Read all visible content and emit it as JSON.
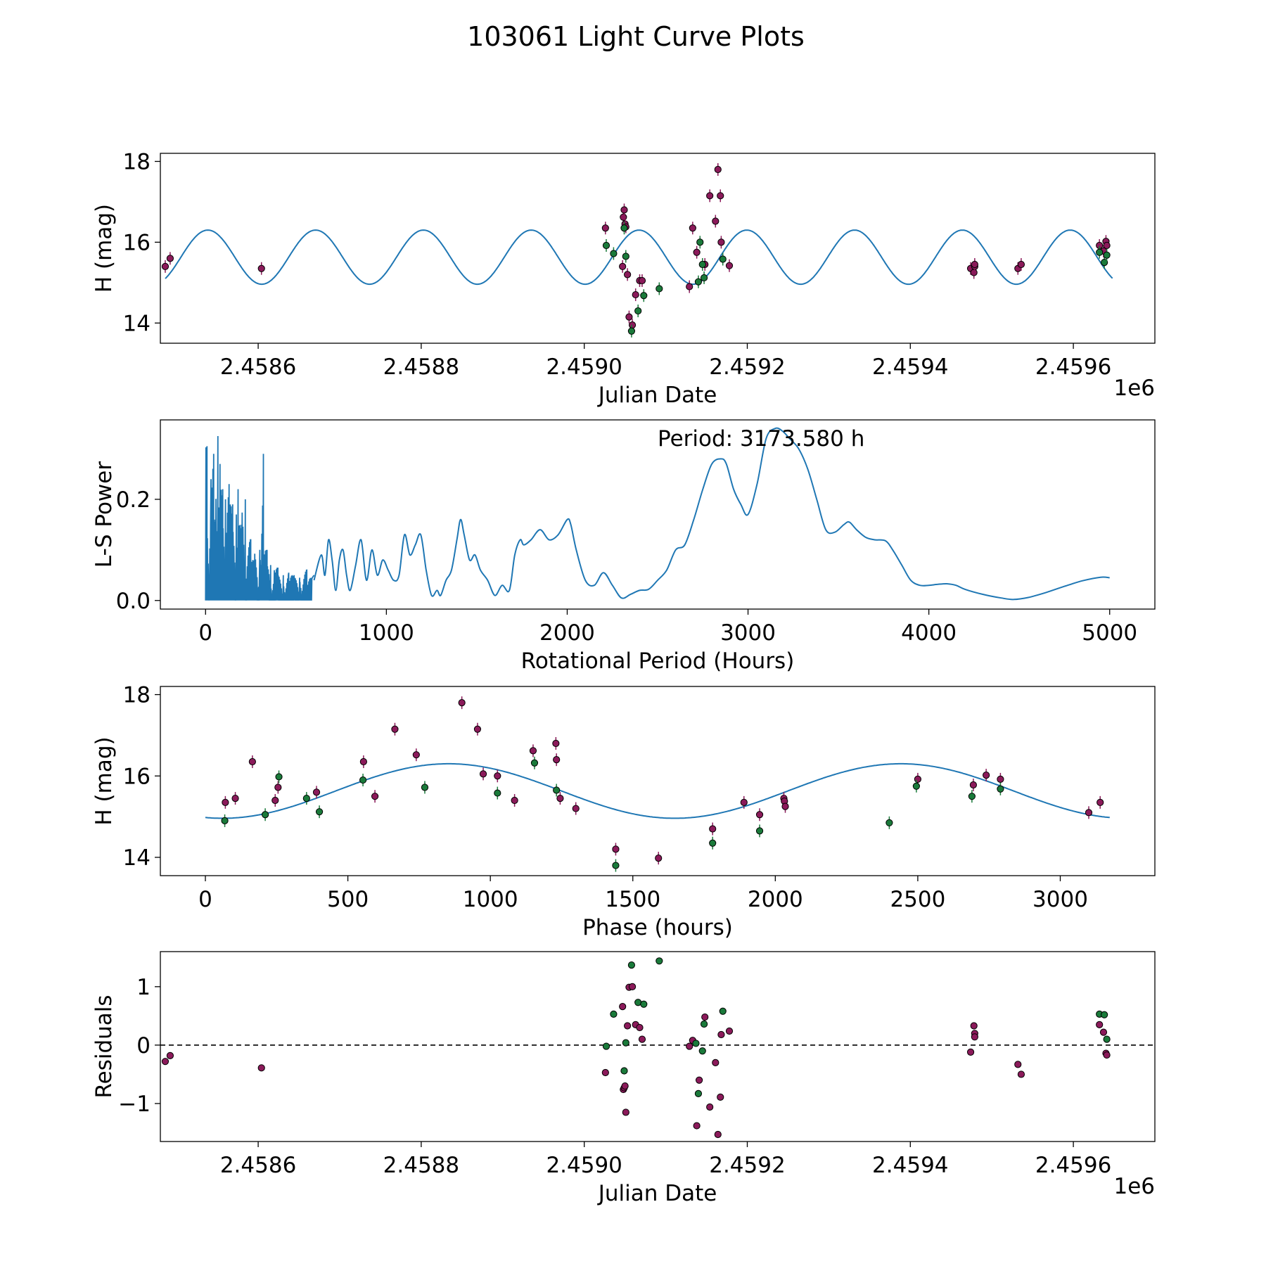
{
  "title": "103061 Light Curve Plots",
  "colors": {
    "model_line": "#1f77b4",
    "point_a": "#8b1a5a",
    "point_b": "#1a7a3a",
    "edge": "#000000",
    "errorbar_a": "#8b1a5a",
    "errorbar_b": "#1a7a3a"
  },
  "chart_data": [
    {
      "id": "lightcurve",
      "type": "scatter",
      "xlabel": "Julian Date",
      "ylabel": "H (mag)",
      "x_offset_label": "1e6",
      "xlim": [
        2.45848,
        2.4597
      ],
      "ylim": [
        13.5,
        18.2
      ],
      "xticks": [
        2.4586,
        2.4588,
        2.459,
        2.4592,
        2.4594,
        2.4596
      ],
      "xtick_labels": [
        "2.4586",
        "2.4588",
        "2.4590",
        "2.4592",
        "2.4594",
        "2.4596"
      ],
      "yticks": [
        14,
        16,
        18
      ],
      "ytick_labels": [
        "14",
        "16",
        "18"
      ],
      "model": {
        "type": "sine",
        "mean": 15.63,
        "amplitude": 0.67,
        "period_days": 132.23,
        "x_start": 2458486,
        "x_end": 2459648,
        "phase_ref": 2458486,
        "start_value": 15.1
      },
      "series": [
        {
          "name": "band-a",
          "color_key": "point_a",
          "x": [
            2458486,
            2458492,
            2458604,
            2459026,
            2459047,
            2459048,
            2459049,
            2459050,
            2459051,
            2459053,
            2459055,
            2459059,
            2459063,
            2459068,
            2459071,
            2459129,
            2459133,
            2459138,
            2459148,
            2459154,
            2459161,
            2459164,
            2459167,
            2459168,
            2459178,
            2459474,
            2459478,
            2459479,
            2459479,
            2459532,
            2459536,
            2459632,
            2459637,
            2459640,
            2459641
          ],
          "y": [
            15.4,
            15.6,
            15.35,
            16.35,
            15.4,
            16.62,
            16.8,
            16.45,
            16.38,
            15.2,
            14.15,
            13.95,
            14.7,
            15.05,
            15.05,
            14.9,
            16.35,
            15.75,
            15.45,
            17.15,
            16.52,
            17.8,
            17.15,
            16.0,
            15.42,
            15.35,
            15.25,
            15.4,
            15.45,
            15.35,
            15.45,
            15.92,
            15.78,
            16.02,
            15.92
          ]
        },
        {
          "name": "band-b",
          "color_key": "point_b",
          "x": [
            2459027,
            2459036,
            2459049,
            2459051,
            2459058,
            2459066,
            2459073,
            2459092,
            2459140,
            2459142,
            2459145,
            2459147,
            2459170,
            2459632,
            2459638,
            2459641
          ],
          "y": [
            15.92,
            15.72,
            16.35,
            15.65,
            13.8,
            14.3,
            14.68,
            14.85,
            15.02,
            16.0,
            15.45,
            15.12,
            15.58,
            15.75,
            15.5,
            15.68
          ]
        }
      ]
    },
    {
      "id": "periodogram",
      "type": "line",
      "xlabel": "Rotational Period (Hours)",
      "ylabel": "L-S Power",
      "annotation": "Period: 3173.580 h",
      "xlim": [
        -250,
        5250
      ],
      "ylim": [
        -0.017,
        0.357
      ],
      "xticks": [
        0,
        1000,
        2000,
        3000,
        4000,
        5000
      ],
      "xtick_labels": [
        "0",
        "1000",
        "2000",
        "3000",
        "4000",
        "5000"
      ],
      "yticks": [
        0.0,
        0.2
      ],
      "ytick_labels": [
        "0.0",
        "0.2"
      ],
      "series": [
        {
          "name": "power",
          "color_key": "model_line",
          "x": [
            600,
            640,
            660,
            680,
            700,
            720,
            740,
            760,
            780,
            800,
            830,
            860,
            890,
            920,
            950,
            980,
            1010,
            1040,
            1070,
            1100,
            1130,
            1160,
            1190,
            1220,
            1250,
            1280,
            1300,
            1330,
            1360,
            1390,
            1410,
            1430,
            1460,
            1490,
            1520,
            1560,
            1600,
            1640,
            1680,
            1710,
            1740,
            1760,
            1800,
            1850,
            1900,
            1950,
            2000,
            2020,
            2050,
            2100,
            2150,
            2200,
            2250,
            2300,
            2350,
            2400,
            2450,
            2500,
            2550,
            2600,
            2650,
            2700,
            2750,
            2800,
            2850,
            2880,
            2920,
            2960,
            3000,
            3050,
            3100,
            3150,
            3190,
            3230,
            3280,
            3330,
            3380,
            3430,
            3480,
            3530,
            3560,
            3600,
            3650,
            3700,
            3760,
            3800,
            3850,
            3900,
            3950,
            4000,
            4050,
            4100,
            4150,
            4200,
            4300,
            4400,
            4470,
            4550,
            4650,
            4750,
            4850,
            4950,
            5000
          ],
          "y": [
            0.04,
            0.09,
            0.05,
            0.12,
            0.08,
            0.02,
            0.08,
            0.1,
            0.05,
            0.02,
            0.07,
            0.12,
            0.04,
            0.1,
            0.05,
            0.08,
            0.06,
            0.04,
            0.05,
            0.13,
            0.09,
            0.11,
            0.13,
            0.06,
            0.01,
            0.02,
            0.01,
            0.04,
            0.06,
            0.12,
            0.16,
            0.13,
            0.08,
            0.09,
            0.06,
            0.04,
            0.01,
            0.03,
            0.02,
            0.09,
            0.12,
            0.11,
            0.12,
            0.14,
            0.12,
            0.13,
            0.16,
            0.15,
            0.1,
            0.04,
            0.03,
            0.055,
            0.03,
            0.005,
            0.012,
            0.02,
            0.022,
            0.04,
            0.06,
            0.1,
            0.11,
            0.16,
            0.22,
            0.27,
            0.28,
            0.27,
            0.22,
            0.19,
            0.17,
            0.23,
            0.32,
            0.34,
            0.335,
            0.32,
            0.3,
            0.26,
            0.2,
            0.14,
            0.135,
            0.15,
            0.155,
            0.14,
            0.125,
            0.12,
            0.118,
            0.1,
            0.07,
            0.04,
            0.03,
            0.03,
            0.032,
            0.033,
            0.03,
            0.022,
            0.012,
            0.005,
            0.002,
            0.006,
            0.016,
            0.028,
            0.039,
            0.046,
            0.045
          ]
        },
        {
          "name": "power-dense",
          "color_key": "model_line",
          "x_range": [
            0,
            600
          ],
          "peaks": [
            [
              8,
              0.305
            ],
            [
              30,
              0.24
            ],
            [
              45,
              0.29
            ],
            [
              55,
              0.16
            ],
            [
              68,
              0.325
            ],
            [
              80,
              0.27
            ],
            [
              95,
              0.22
            ],
            [
              110,
              0.2
            ],
            [
              130,
              0.23
            ],
            [
              150,
              0.19
            ],
            [
              170,
              0.17
            ],
            [
              180,
              0.22
            ],
            [
              200,
              0.15
            ],
            [
              220,
              0.2
            ],
            [
              250,
              0.12
            ],
            [
              270,
              0.08
            ],
            [
              300,
              0.1
            ],
            [
              320,
              0.29
            ],
            [
              340,
              0.1
            ],
            [
              360,
              0.07
            ],
            [
              380,
              0.06
            ],
            [
              400,
              0.065
            ],
            [
              430,
              0.05
            ],
            [
              460,
              0.055
            ],
            [
              490,
              0.05
            ],
            [
              520,
              0.045
            ],
            [
              560,
              0.06
            ],
            [
              590,
              0.045
            ]
          ]
        }
      ]
    },
    {
      "id": "phased",
      "type": "scatter",
      "xlabel": "Phase (hours)",
      "ylabel": "H (mag)",
      "xlim": [
        -158,
        3332
      ],
      "ylim": [
        13.55,
        18.2
      ],
      "xticks": [
        0,
        500,
        1000,
        1500,
        2000,
        2500,
        3000
      ],
      "xtick_labels": [
        "0",
        "500",
        "1000",
        "1500",
        "2000",
        "2500",
        "3000"
      ],
      "yticks": [
        14,
        16,
        18
      ],
      "ytick_labels": [
        "14",
        "16",
        "18"
      ],
      "model": {
        "type": "sine",
        "mean": 15.63,
        "amplitude": 0.67,
        "period": 1586.79,
        "x_start": 0,
        "x_end": 3173.58,
        "phase_ref": 0,
        "start_value": 14.96
      },
      "series": [
        {
          "name": "band-a",
          "color_key": "point_a",
          "x": [
            70,
            105,
            165,
            245,
            255,
            390,
            555,
            595,
            665,
            740,
            900,
            955,
            975,
            1025,
            1085,
            1150,
            1230,
            1232,
            1245,
            1300,
            1440,
            1590,
            1780,
            1890,
            1945,
            2030,
            2032,
            2035,
            2500,
            2695,
            2740,
            2790,
            3100,
            3140
          ],
          "y": [
            15.35,
            15.45,
            16.35,
            15.4,
            15.72,
            15.6,
            16.35,
            15.5,
            17.15,
            16.52,
            17.8,
            17.15,
            16.05,
            16.0,
            15.4,
            16.62,
            16.8,
            16.4,
            15.45,
            15.2,
            14.2,
            13.98,
            14.7,
            15.35,
            15.05,
            15.45,
            15.38,
            15.25,
            15.92,
            15.78,
            16.02,
            15.92,
            15.1,
            15.35
          ]
        },
        {
          "name": "band-b",
          "color_key": "point_b",
          "x": [
            68,
            210,
            258,
            355,
            400,
            553,
            770,
            1025,
            1155,
            1232,
            1440,
            1780,
            1945,
            2400,
            2495,
            2690,
            2790
          ],
          "y": [
            14.9,
            15.05,
            15.98,
            15.45,
            15.12,
            15.9,
            15.72,
            15.58,
            16.32,
            15.65,
            13.8,
            14.35,
            14.65,
            14.85,
            15.75,
            15.5,
            15.68
          ]
        }
      ]
    },
    {
      "id": "residuals",
      "type": "scatter",
      "xlabel": "Julian Date",
      "ylabel": "Residuals",
      "x_offset_label": "1e6",
      "xlim": [
        2.45848,
        2.4597
      ],
      "ylim": [
        -1.65,
        1.6
      ],
      "xticks": [
        2.4586,
        2.4588,
        2.459,
        2.4592,
        2.4594,
        2.4596
      ],
      "xtick_labels": [
        "2.4586",
        "2.4588",
        "2.4590",
        "2.4592",
        "2.4594",
        "2.4596"
      ],
      "yticks": [
        -1,
        0,
        1
      ],
      "ytick_labels": [
        "−1",
        "0",
        "1"
      ],
      "reference_line": 0,
      "series": [
        {
          "name": "band-a",
          "color_key": "point_a",
          "x": [
            2458486,
            2458492,
            2458604,
            2459026,
            2459047,
            2459048,
            2459049,
            2459050,
            2459051,
            2459053,
            2459055,
            2459059,
            2459063,
            2459068,
            2459071,
            2459129,
            2459133,
            2459138,
            2459141,
            2459148,
            2459154,
            2459161,
            2459164,
            2459167,
            2459168,
            2459178,
            2459474,
            2459478,
            2459479,
            2459479,
            2459532,
            2459536,
            2459632,
            2459637,
            2459640,
            2459641
          ],
          "y": [
            -0.28,
            -0.18,
            -0.39,
            -0.47,
            0.66,
            -0.76,
            -0.73,
            -0.7,
            -1.15,
            0.33,
            0.99,
            1.0,
            0.35,
            0.3,
            0.1,
            -0.02,
            0.08,
            -1.38,
            -0.6,
            0.48,
            -1.06,
            -0.3,
            -1.53,
            -0.89,
            0.18,
            0.24,
            -0.12,
            0.33,
            0.2,
            0.14,
            -0.33,
            -0.5,
            0.35,
            0.22,
            -0.14,
            -0.17
          ]
        },
        {
          "name": "band-b",
          "color_key": "point_b",
          "x": [
            2459027,
            2459036,
            2459049,
            2459051,
            2459058,
            2459066,
            2459073,
            2459092,
            2459137,
            2459140,
            2459145,
            2459147,
            2459170,
            2459632,
            2459638,
            2459641
          ],
          "y": [
            -0.02,
            0.53,
            -0.44,
            0.04,
            1.37,
            0.73,
            0.7,
            1.44,
            0.03,
            -0.83,
            -0.1,
            0.36,
            0.58,
            0.53,
            0.52,
            0.1
          ]
        }
      ]
    }
  ]
}
